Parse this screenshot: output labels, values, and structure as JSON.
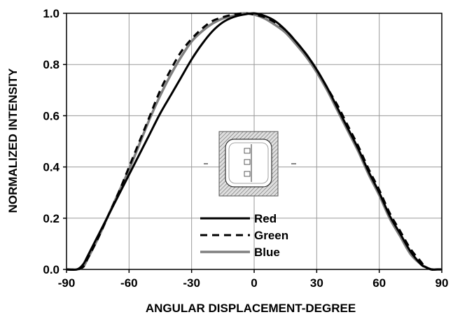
{
  "chart_data": {
    "type": "line",
    "xlabel": "ANGULAR DISPLACEMENT-DEGREE",
    "ylabel": "NORMALIZED INTENSITY",
    "xlim": [
      -90,
      90
    ],
    "ylim": [
      0.0,
      1.0
    ],
    "xticks": [
      -90,
      -60,
      -30,
      0,
      30,
      60,
      90
    ],
    "yticks": [
      0.0,
      0.2,
      0.4,
      0.6,
      0.8,
      1.0
    ],
    "xtick_labels": [
      "-90",
      "-60",
      "-30",
      "0",
      "30",
      "60",
      "90"
    ],
    "ytick_labels": [
      "0.0",
      "0.2",
      "0.4",
      "0.6",
      "0.8",
      "1.0"
    ],
    "grid": true,
    "legend_position": "bottom-center",
    "series": [
      {
        "name": "Red",
        "color": "#000000",
        "style": "solid",
        "x": [
          -90,
          -85,
          -82,
          -80,
          -75,
          -70,
          -65,
          -60,
          -55,
          -50,
          -45,
          -40,
          -35,
          -30,
          -25,
          -20,
          -15,
          -10,
          -5,
          0,
          5,
          10,
          15,
          20,
          25,
          30,
          35,
          40,
          45,
          50,
          55,
          60,
          65,
          70,
          75,
          80,
          82,
          85,
          88,
          90
        ],
        "y": [
          0.0,
          0.0,
          0.02,
          0.05,
          0.13,
          0.21,
          0.29,
          0.37,
          0.45,
          0.53,
          0.61,
          0.68,
          0.75,
          0.82,
          0.88,
          0.93,
          0.965,
          0.985,
          0.995,
          1.0,
          0.99,
          0.97,
          0.935,
          0.89,
          0.84,
          0.78,
          0.71,
          0.63,
          0.55,
          0.47,
          0.38,
          0.3,
          0.21,
          0.14,
          0.07,
          0.02,
          0.01,
          0.0,
          0.0,
          0.0
        ]
      },
      {
        "name": "Green",
        "color": "#000000",
        "style": "dashed",
        "x": [
          -90,
          -85,
          -82,
          -80,
          -75,
          -70,
          -65,
          -60,
          -55,
          -50,
          -45,
          -40,
          -35,
          -30,
          -25,
          -20,
          -15,
          -10,
          -5,
          0,
          5,
          10,
          15,
          20,
          25,
          30,
          35,
          40,
          45,
          50,
          55,
          60,
          65,
          70,
          75,
          80,
          82,
          85,
          88,
          90
        ],
        "y": [
          0.0,
          0.0,
          0.01,
          0.04,
          0.12,
          0.21,
          0.3,
          0.4,
          0.5,
          0.6,
          0.7,
          0.78,
          0.85,
          0.9,
          0.94,
          0.97,
          0.985,
          0.995,
          1.0,
          0.995,
          0.985,
          0.965,
          0.935,
          0.89,
          0.84,
          0.78,
          0.71,
          0.64,
          0.56,
          0.48,
          0.39,
          0.31,
          0.22,
          0.15,
          0.08,
          0.03,
          0.01,
          0.0,
          0.0,
          0.0
        ]
      },
      {
        "name": "Blue",
        "color": "#808080",
        "style": "solid",
        "x": [
          -90,
          -85,
          -82,
          -80,
          -75,
          -70,
          -65,
          -60,
          -55,
          -50,
          -45,
          -40,
          -35,
          -30,
          -25,
          -20,
          -15,
          -10,
          -5,
          0,
          5,
          10,
          15,
          20,
          25,
          30,
          35,
          40,
          45,
          50,
          55,
          60,
          65,
          70,
          75,
          80,
          82,
          85,
          88,
          90
        ],
        "y": [
          0.0,
          0.0,
          0.01,
          0.04,
          0.12,
          0.21,
          0.3,
          0.39,
          0.49,
          0.59,
          0.68,
          0.76,
          0.83,
          0.89,
          0.93,
          0.96,
          0.98,
          0.99,
          1.0,
          0.995,
          0.98,
          0.955,
          0.925,
          0.88,
          0.83,
          0.77,
          0.7,
          0.62,
          0.54,
          0.46,
          0.37,
          0.29,
          0.2,
          0.13,
          0.06,
          0.02,
          0.01,
          0.0,
          0.0,
          0.0
        ]
      }
    ]
  }
}
